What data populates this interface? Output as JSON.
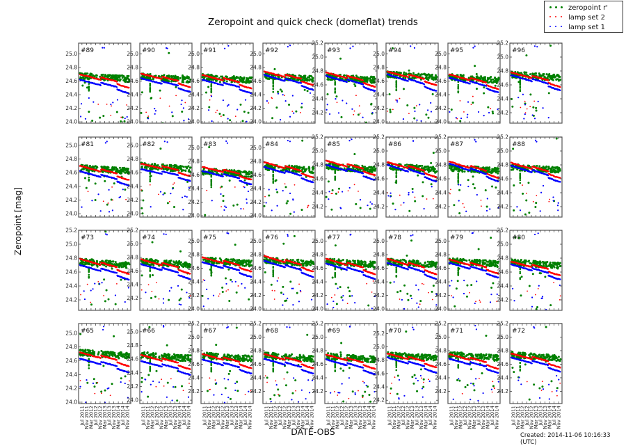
{
  "title": "Zeropoint and quick check (domeflat) trends",
  "xlabel": "DATE-OBS",
  "ylabel": "Zeropoint [mag]",
  "created": "Created: 2014-11-06 10:16:33 (UTC)",
  "legend": [
    {
      "label": "zeropoint r'",
      "color": "#008000"
    },
    {
      "label": "lamp set 2",
      "color": "#ff0000"
    },
    {
      "label": "lamp set 1",
      "color": "#0000ff"
    }
  ],
  "chart_data": {
    "type": "scatter",
    "title": "Zeropoint and quick check (domeflat) trends",
    "xlabel": "DATE-OBS",
    "ylabel": "Zeropoint [mag]",
    "x_tick_labels": [
      "Jul 2011",
      "Nov 2011",
      "Mar 2012",
      "Jul 2012",
      "Nov 2012",
      "Mar 2013",
      "Jul 2013",
      "Nov 2013",
      "Mar 2014",
      "Jul 2014",
      "Nov 2014"
    ],
    "x_range": [
      "2011-05",
      "2014-11"
    ],
    "grid": false,
    "legend_position": "upper right (figure)",
    "series_names": [
      "zeropoint r'",
      "lamp set 2",
      "lamp set 1"
    ],
    "series_colors": [
      "#008000",
      "#ff0000",
      "#0000ff"
    ],
    "panels": [
      {
        "id": "#89",
        "ylim": [
          23.98,
          25.16
        ],
        "yticks": [
          24.0,
          24.2,
          24.4,
          24.6,
          24.8,
          25.0
        ],
        "zp": 24.68,
        "lamp2": [
          24.7,
          24.51
        ],
        "lamp1": [
          24.62,
          24.43
        ]
      },
      {
        "id": "#90",
        "ylim": [
          23.98,
          25.16
        ],
        "yticks": [
          24.0,
          24.2,
          24.4,
          24.6,
          24.8,
          25.0
        ],
        "zp": 24.67,
        "lamp2": [
          24.71,
          24.52
        ],
        "lamp1": [
          24.64,
          24.45
        ]
      },
      {
        "id": "#91",
        "ylim": [
          23.98,
          25.16
        ],
        "yticks": [
          24.0,
          24.2,
          24.4,
          24.6,
          24.8,
          25.0
        ],
        "zp": 24.66,
        "lamp2": [
          24.69,
          24.5
        ],
        "lamp1": [
          24.62,
          24.43
        ]
      },
      {
        "id": "#92",
        "ylim": [
          23.98,
          25.16
        ],
        "yticks": [
          24.0,
          24.2,
          24.4,
          24.6,
          24.8,
          25.0
        ],
        "zp": 24.68,
        "lamp2": [
          24.74,
          24.55
        ],
        "lamp1": [
          24.69,
          24.48
        ]
      },
      {
        "id": "#93",
        "ylim": [
          24.05,
          25.2
        ],
        "yticks": [
          24.2,
          24.4,
          24.6,
          24.8,
          25.0,
          25.2
        ],
        "zp": 24.72,
        "lamp2": [
          24.78,
          24.58
        ],
        "lamp1": [
          24.73,
          24.52
        ]
      },
      {
        "id": "#94",
        "ylim": [
          23.98,
          25.16
        ],
        "yticks": [
          24.0,
          24.2,
          24.4,
          24.6,
          24.8,
          25.0
        ],
        "zp": 24.7,
        "lamp2": [
          24.74,
          24.55
        ],
        "lamp1": [
          24.7,
          24.46
        ]
      },
      {
        "id": "#95",
        "ylim": [
          23.98,
          25.16
        ],
        "yticks": [
          24.0,
          24.2,
          24.4,
          24.6,
          24.8,
          25.0
        ],
        "zp": 24.66,
        "lamp2": [
          24.7,
          24.49
        ],
        "lamp1": [
          24.65,
          24.44
        ]
      },
      {
        "id": "#96",
        "ylim": [
          24.05,
          25.2
        ],
        "yticks": [
          24.2,
          24.4,
          24.6,
          24.8,
          25.0,
          25.2
        ],
        "zp": 24.75,
        "lamp2": [
          24.78,
          24.58
        ],
        "lamp1": [
          24.74,
          24.53
        ]
      },
      {
        "id": "#81",
        "ylim": [
          23.95,
          25.12
        ],
        "yticks": [
          24.0,
          24.2,
          24.4,
          24.6,
          24.8,
          25.0
        ],
        "zp": 24.67,
        "lamp2": [
          24.7,
          24.5
        ],
        "lamp1": [
          24.62,
          24.42
        ]
      },
      {
        "id": "#82",
        "ylim": [
          23.95,
          25.12
        ],
        "yticks": [
          24.0,
          24.2,
          24.4,
          24.6,
          24.8,
          25.0
        ],
        "zp": 24.7,
        "lamp2": [
          24.73,
          24.56
        ],
        "lamp1": [
          24.65,
          24.49
        ]
      },
      {
        "id": "#83",
        "ylim": [
          23.98,
          25.16
        ],
        "yticks": [
          24.0,
          24.2,
          24.4,
          24.6,
          24.8,
          25.0
        ],
        "zp": 24.66,
        "lamp2": [
          24.72,
          24.54
        ],
        "lamp1": [
          24.66,
          24.47
        ]
      },
      {
        "id": "#84",
        "ylim": [
          23.98,
          25.16
        ],
        "yticks": [
          24.0,
          24.2,
          24.4,
          24.6,
          24.8,
          25.0
        ],
        "zp": 24.72,
        "lamp2": [
          24.79,
          24.57
        ],
        "lamp1": [
          24.72,
          24.5
        ]
      },
      {
        "id": "#85",
        "ylim": [
          24.05,
          25.2
        ],
        "yticks": [
          24.2,
          24.4,
          24.6,
          24.8,
          25.0,
          25.2
        ],
        "zp": 24.78,
        "lamp2": [
          24.86,
          24.66
        ],
        "lamp1": [
          24.8,
          24.59
        ]
      },
      {
        "id": "#86",
        "ylim": [
          24.05,
          25.2
        ],
        "yticks": [
          24.2,
          24.4,
          24.6,
          24.8,
          25.0,
          25.2
        ],
        "zp": 24.78,
        "lamp2": [
          24.84,
          24.63
        ],
        "lamp1": [
          24.8,
          24.57
        ]
      },
      {
        "id": "#87",
        "ylim": [
          24.05,
          25.2
        ],
        "yticks": [
          24.2,
          24.4,
          24.6,
          24.8,
          25.0,
          25.2
        ],
        "zp": 24.76,
        "lamp2": [
          24.85,
          24.62
        ],
        "lamp1": [
          24.82,
          24.57
        ]
      },
      {
        "id": "#88",
        "ylim": [
          24.05,
          25.2
        ],
        "yticks": [
          24.2,
          24.4,
          24.6,
          24.8,
          25.0,
          25.2
        ],
        "zp": 24.77,
        "lamp2": [
          24.83,
          24.62
        ],
        "lamp1": [
          24.79,
          24.56
        ]
      },
      {
        "id": "#73",
        "ylim": [
          24.05,
          25.2
        ],
        "yticks": [
          24.2,
          24.4,
          24.6,
          24.8,
          25.0,
          25.2
        ],
        "zp": 24.75,
        "lamp2": [
          24.79,
          24.58
        ],
        "lamp1": [
          24.7,
          24.5
        ]
      },
      {
        "id": "#74",
        "ylim": [
          24.02,
          25.2
        ],
        "yticks": [
          24.2,
          24.4,
          24.6,
          24.8,
          25.0,
          25.2
        ],
        "zp": 24.74,
        "lamp2": [
          24.77,
          24.57
        ],
        "lamp1": [
          24.7,
          24.49
        ]
      },
      {
        "id": "#75",
        "ylim": [
          23.98,
          25.16
        ],
        "yticks": [
          24.0,
          24.2,
          24.4,
          24.6,
          24.8,
          25.0
        ],
        "zp": 24.72,
        "lamp2": [
          24.76,
          24.56
        ],
        "lamp1": [
          24.69,
          24.48
        ]
      },
      {
        "id": "#76",
        "ylim": [
          23.98,
          25.16
        ],
        "yticks": [
          24.0,
          24.2,
          24.4,
          24.6,
          24.8,
          25.0
        ],
        "zp": 24.72,
        "lamp2": [
          24.78,
          24.56
        ],
        "lamp1": [
          24.71,
          24.48
        ]
      },
      {
        "id": "#77",
        "ylim": [
          23.98,
          25.16
        ],
        "yticks": [
          24.0,
          24.2,
          24.4,
          24.6,
          24.8,
          25.0
        ],
        "zp": 24.7,
        "lamp2": [
          24.74,
          24.52
        ],
        "lamp1": [
          24.67,
          24.45
        ]
      },
      {
        "id": "#78",
        "ylim": [
          23.98,
          25.16
        ],
        "yticks": [
          24.0,
          24.2,
          24.4,
          24.6,
          24.8,
          25.0
        ],
        "zp": 24.7,
        "lamp2": [
          24.74,
          24.52
        ],
        "lamp1": [
          24.68,
          24.45
        ]
      },
      {
        "id": "#79",
        "ylim": [
          23.98,
          25.16
        ],
        "yticks": [
          24.0,
          24.2,
          24.4,
          24.6,
          24.8,
          25.0
        ],
        "zp": 24.71,
        "lamp2": [
          24.73,
          24.53
        ],
        "lamp1": [
          24.68,
          24.47
        ]
      },
      {
        "id": "#80",
        "ylim": [
          24.05,
          25.2
        ],
        "yticks": [
          24.2,
          24.4,
          24.6,
          24.8,
          25.0,
          25.2
        ],
        "zp": 24.74,
        "lamp2": [
          24.75,
          24.56
        ],
        "lamp1": [
          24.71,
          24.5
        ]
      },
      {
        "id": "#65",
        "ylim": [
          23.98,
          25.14
        ],
        "yticks": [
          24.0,
          24.2,
          24.4,
          24.6,
          24.8,
          25.0
        ],
        "zp": 24.72,
        "lamp2": [
          24.72,
          24.53
        ],
        "lamp1": [
          24.63,
          24.44
        ]
      },
      {
        "id": "#66",
        "ylim": [
          23.95,
          25.12
        ],
        "yticks": [
          24.0,
          24.2,
          24.4,
          24.6,
          24.8,
          25.0
        ],
        "zp": 24.66,
        "lamp2": [
          24.66,
          24.46
        ],
        "lamp1": [
          24.57,
          24.38
        ]
      },
      {
        "id": "#67",
        "ylim": [
          24.02,
          25.2
        ],
        "yticks": [
          24.2,
          24.4,
          24.6,
          24.8,
          25.0,
          25.2
        ],
        "zp": 24.73,
        "lamp2": [
          24.75,
          24.55
        ],
        "lamp1": [
          24.67,
          24.47
        ]
      },
      {
        "id": "#68",
        "ylim": [
          24.02,
          25.2
        ],
        "yticks": [
          24.2,
          24.4,
          24.6,
          24.8,
          25.0,
          25.2
        ],
        "zp": 24.73,
        "lamp2": [
          24.75,
          24.55
        ],
        "lamp1": [
          24.68,
          24.47
        ]
      },
      {
        "id": "#69",
        "ylim": [
          24.02,
          25.2
        ],
        "yticks": [
          24.2,
          24.4,
          24.6,
          24.8,
          25.0,
          25.2
        ],
        "zp": 24.72,
        "lamp2": [
          24.74,
          24.54
        ],
        "lamp1": [
          24.67,
          24.46
        ]
      },
      {
        "id": "#70",
        "ylim": [
          24.15,
          25.35
        ],
        "yticks": [
          24.2,
          24.4,
          24.6,
          24.8,
          25.0,
          25.2
        ],
        "zp": 24.88,
        "lamp2": [
          24.9,
          24.7
        ],
        "lamp1": [
          24.84,
          24.62
        ]
      },
      {
        "id": "#71",
        "ylim": [
          24.02,
          25.2
        ],
        "yticks": [
          24.2,
          24.4,
          24.6,
          24.8,
          25.0,
          25.2
        ],
        "zp": 24.74,
        "lamp2": [
          24.75,
          24.54
        ],
        "lamp1": [
          24.68,
          24.48
        ]
      },
      {
        "id": "#72",
        "ylim": [
          24.02,
          25.2
        ],
        "yticks": [
          24.2,
          24.4,
          24.6,
          24.8,
          25.0,
          25.2
        ],
        "zp": 24.74,
        "lamp2": [
          24.76,
          24.56
        ],
        "lamp1": [
          24.7,
          24.5
        ]
      }
    ]
  }
}
